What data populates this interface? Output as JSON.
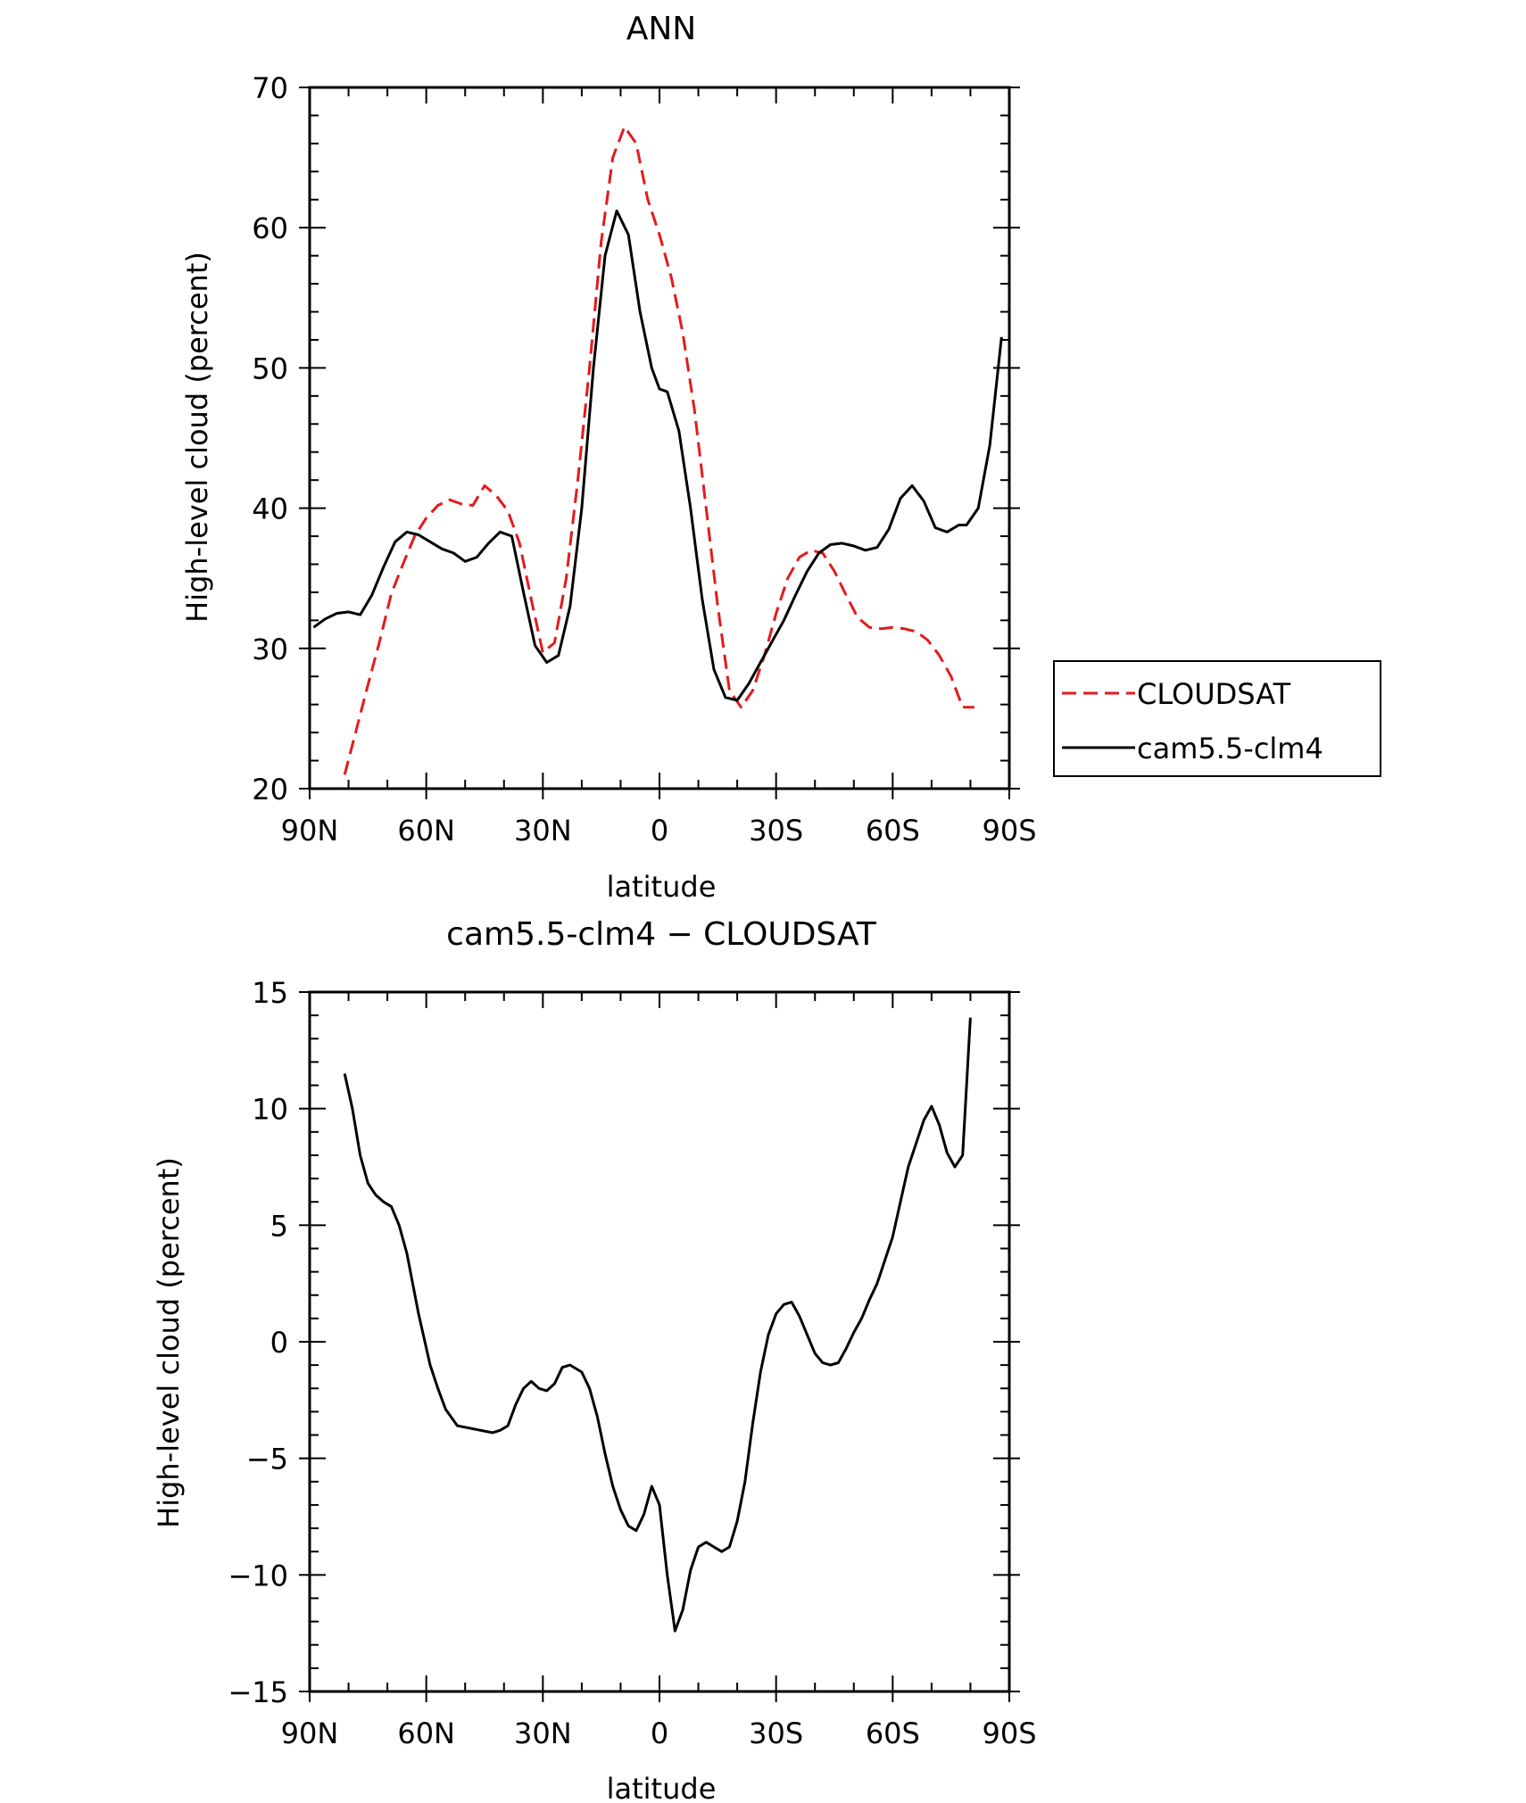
{
  "colors": {
    "cloudsat": "#e41a1c",
    "model": "#000000",
    "axis": "#000000"
  },
  "chart_data": [
    {
      "type": "line",
      "title": "ANN",
      "xlabel": "latitude",
      "ylabel": "High-level cloud (percent)",
      "xlim": [
        90,
        -90
      ],
      "ylim": [
        20,
        70
      ],
      "xticks": [
        90,
        60,
        30,
        0,
        -30,
        -60,
        -90
      ],
      "xtick_labels": [
        "90N",
        "60N",
        "30N",
        "0",
        "30S",
        "60S",
        "90S"
      ],
      "yticks": [
        20,
        30,
        40,
        50,
        60,
        70
      ],
      "ytick_labels": [
        "20",
        "30",
        "40",
        "50",
        "60",
        "70"
      ],
      "legend": {
        "placement": "right",
        "entries": [
          "CLOUDSAT",
          "cam5.5-clm4"
        ]
      },
      "series": [
        {
          "name": "CLOUDSAT",
          "style": "dashed",
          "x": [
            81,
            78,
            75,
            72,
            69,
            66,
            63,
            60,
            57,
            54,
            51,
            48,
            45,
            42,
            39,
            36,
            33,
            30,
            27,
            24,
            21,
            18,
            15,
            12,
            9,
            6,
            3,
            0,
            -3,
            -6,
            -9,
            -12,
            -15,
            -18,
            -21,
            -24,
            -27,
            -30,
            -33,
            -36,
            -39,
            -42,
            -45,
            -48,
            -51,
            -54,
            -57,
            -60,
            -63,
            -66,
            -69,
            -72,
            -75,
            -78,
            -81
          ],
          "values": [
            21.0,
            24.2,
            27.4,
            30.5,
            33.9,
            36.0,
            38.0,
            39.3,
            40.2,
            40.6,
            40.3,
            40.2,
            41.6,
            40.9,
            39.8,
            37.5,
            33.5,
            29.7,
            30.4,
            35.0,
            42.0,
            50.0,
            59.0,
            65.0,
            67.2,
            66.0,
            62.0,
            59.5,
            56.5,
            52.5,
            47.0,
            40.0,
            33.0,
            27.0,
            25.8,
            27.0,
            29.5,
            32.5,
            35.0,
            36.5,
            37.0,
            36.8,
            35.5,
            33.8,
            32.2,
            31.5,
            31.4,
            31.5,
            31.4,
            31.2,
            30.6,
            29.5,
            28.0,
            25.8,
            25.8
          ]
        },
        {
          "name": "cam5.5-clm4",
          "style": "solid",
          "x": [
            89,
            86,
            83,
            80,
            77,
            74,
            71,
            68,
            65,
            62,
            59,
            56,
            53,
            50,
            47,
            44,
            41,
            38,
            35,
            32,
            29,
            26,
            23,
            20,
            17,
            14,
            11,
            8,
            5,
            2,
            0,
            -2,
            -5,
            -8,
            -11,
            -14,
            -17,
            -20,
            -23,
            -26,
            -29,
            -32,
            -35,
            -38,
            -41,
            -44,
            -47,
            -50,
            -53,
            -56,
            -59,
            -62,
            -65,
            -68,
            -71,
            -74,
            -77,
            -79,
            -82,
            -85,
            -88
          ],
          "values": [
            31.5,
            32.1,
            32.5,
            32.6,
            32.4,
            33.8,
            35.8,
            37.6,
            38.3,
            38.1,
            37.6,
            37.1,
            36.8,
            36.2,
            36.5,
            37.5,
            38.3,
            38.0,
            34.0,
            30.2,
            29.0,
            29.5,
            33.0,
            40.0,
            50.0,
            58.0,
            61.2,
            59.5,
            54.0,
            50.0,
            48.5,
            48.3,
            45.5,
            40.0,
            33.5,
            28.5,
            26.5,
            26.3,
            27.5,
            29.0,
            30.5,
            32.0,
            33.8,
            35.5,
            36.8,
            37.4,
            37.5,
            37.3,
            37.0,
            37.2,
            38.5,
            40.7,
            41.6,
            40.5,
            38.6,
            38.3,
            38.8,
            38.8,
            40.0,
            44.5,
            52.2
          ]
        }
      ]
    },
    {
      "type": "line",
      "title": "cam5.5-clm4 − CLOUDSAT",
      "xlabel": "latitude",
      "ylabel": "High-level cloud (percent)",
      "xlim": [
        90,
        -90
      ],
      "ylim": [
        -15,
        15
      ],
      "xticks": [
        90,
        60,
        30,
        0,
        -30,
        -60,
        -90
      ],
      "xtick_labels": [
        "90N",
        "60N",
        "30N",
        "0",
        "30S",
        "60S",
        "90S"
      ],
      "yticks": [
        -15,
        -10,
        -5,
        0,
        5,
        10,
        15
      ],
      "ytick_labels": [
        "−15",
        "−10",
        "−5",
        "0",
        "5",
        "10",
        "15"
      ],
      "series": [
        {
          "name": "cam5.5-clm4 − CLOUDSAT",
          "style": "solid",
          "x": [
            81,
            79,
            77,
            75,
            73,
            71,
            69,
            67,
            65,
            62,
            59,
            57,
            55,
            52,
            49,
            46,
            43,
            41,
            39,
            37,
            35,
            33,
            31,
            29,
            27,
            25,
            23,
            20,
            18,
            16,
            14,
            12,
            10,
            8,
            6,
            4,
            2,
            0,
            -2,
            -4,
            -6,
            -8,
            -10,
            -12,
            -14,
            -16,
            -18,
            -20,
            -22,
            -24,
            -26,
            -28,
            -30,
            -32,
            -34,
            -36,
            -38,
            -40,
            -42,
            -44,
            -46,
            -48,
            -50,
            -52,
            -54,
            -56,
            -58,
            -60,
            -62,
            -64,
            -66,
            -68,
            -70,
            -72,
            -74,
            -76,
            -78,
            -80
          ],
          "values": [
            11.5,
            10.0,
            8.0,
            6.8,
            6.3,
            6.0,
            5.8,
            5.0,
            3.8,
            1.2,
            -1.0,
            -2.0,
            -2.9,
            -3.6,
            -3.7,
            -3.8,
            -3.9,
            -3.8,
            -3.6,
            -2.7,
            -2.0,
            -1.7,
            -2.0,
            -2.1,
            -1.8,
            -1.1,
            -1.0,
            -1.3,
            -2.0,
            -3.2,
            -4.8,
            -6.2,
            -7.2,
            -7.9,
            -8.1,
            -7.4,
            -6.2,
            -7.0,
            -10.0,
            -12.4,
            -11.5,
            -9.8,
            -8.8,
            -8.6,
            -8.8,
            -9.0,
            -8.8,
            -7.7,
            -6.0,
            -3.5,
            -1.3,
            0.3,
            1.2,
            1.6,
            1.7,
            1.1,
            0.3,
            -0.5,
            -0.9,
            -1.0,
            -0.9,
            -0.3,
            0.4,
            1.0,
            1.8,
            2.5,
            3.5,
            4.5,
            6.0,
            7.5,
            8.5,
            9.5,
            10.1,
            9.3,
            8.1,
            7.5,
            8.0,
            13.9
          ]
        }
      ]
    }
  ]
}
